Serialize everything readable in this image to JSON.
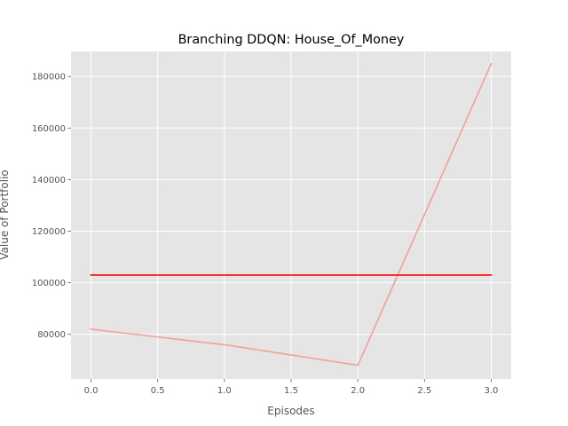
{
  "chart_data": {
    "type": "line",
    "title": "Branching DDQN: House_Of_Money",
    "xlabel": "Episodes",
    "ylabel": "Value of Portfolio",
    "xlim": [
      -0.15,
      3.15
    ],
    "ylim": [
      62700,
      189700
    ],
    "xticks": [
      0.0,
      0.5,
      1.0,
      1.5,
      2.0,
      2.5,
      3.0
    ],
    "xtick_labels": [
      "0.0",
      "0.5",
      "1.0",
      "1.5",
      "2.0",
      "2.5",
      "3.0"
    ],
    "yticks": [
      80000,
      100000,
      120000,
      140000,
      160000,
      180000
    ],
    "ytick_labels": [
      "80000",
      "100000",
      "120000",
      "140000",
      "160000",
      "180000"
    ],
    "grid": true,
    "series": [
      {
        "x": [
          0,
          1,
          2,
          3
        ],
        "values": [
          82000,
          76000,
          68000,
          185000
        ],
        "color": "#f4a09a"
      },
      {
        "x": [
          0,
          1,
          2,
          3
        ],
        "values": [
          103000,
          103000,
          103000,
          103000
        ],
        "color": "#ff0000"
      }
    ],
    "colors": {
      "plot_background": "#e5e5e5",
      "grid": "#ffffff",
      "tick_text": "#555555"
    }
  }
}
